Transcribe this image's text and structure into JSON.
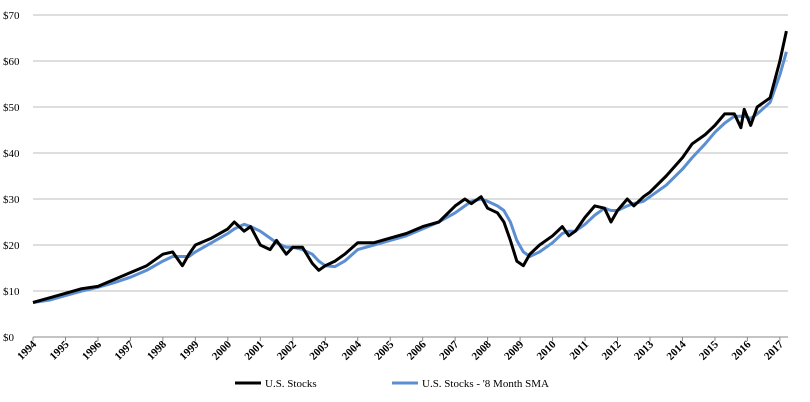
{
  "chart_data": {
    "type": "line",
    "x": [
      1994,
      1994.5,
      1995,
      1995.5,
      1996,
      1996.5,
      1997,
      1997.5,
      1998,
      1998.3,
      1998.6,
      1998.8,
      1999,
      1999.5,
      2000,
      2000.2,
      2000.5,
      2000.7,
      2001,
      2001.3,
      2001.5,
      2001.8,
      2002,
      2002.3,
      2002.6,
      2002.8,
      2003,
      2003.3,
      2003.6,
      2004,
      2004.5,
      2005,
      2005.5,
      2006,
      2006.5,
      2007,
      2007.3,
      2007.5,
      2007.8,
      2008,
      2008.3,
      2008.5,
      2008.7,
      2008.9,
      2009.1,
      2009.3,
      2009.6,
      2010,
      2010.3,
      2010.5,
      2010.7,
      2011,
      2011.3,
      2011.6,
      2011.8,
      2012,
      2012.3,
      2012.5,
      2012.8,
      2013,
      2013.5,
      2014,
      2014.3,
      2014.7,
      2015,
      2015.3,
      2015.6,
      2015.8,
      2015.9,
      2016.1,
      2016.3,
      2016.7,
      2017,
      2017.2
    ],
    "series": [
      {
        "name": "U.S. Stocks",
        "color": "#000000",
        "width": 3,
        "values": [
          7.5,
          8.5,
          9.5,
          10.5,
          11,
          12.5,
          14,
          15.5,
          18,
          18.5,
          15.5,
          18,
          20,
          21.5,
          23.5,
          25,
          23,
          24,
          20,
          19,
          21,
          18,
          19.5,
          19.5,
          16,
          14.5,
          15.5,
          16.5,
          18,
          20.5,
          20.5,
          21.5,
          22.5,
          24,
          25,
          28.5,
          30,
          29,
          30.5,
          28,
          27,
          25,
          21,
          16.5,
          15.5,
          18,
          20,
          22,
          24,
          22,
          23,
          26,
          28.5,
          28,
          25,
          27.5,
          30,
          28.5,
          30.5,
          31.5,
          35,
          39,
          42,
          44,
          46,
          48.5,
          48.5,
          45.5,
          49.5,
          46,
          50,
          52,
          60,
          66.5
        ]
      },
      {
        "name": "U.S. Stocks - '8 Month SMA",
        "color": "#5b8fd1",
        "width": 3,
        "values": [
          7.5,
          8,
          9,
          10,
          10.8,
          11.8,
          13,
          14.5,
          16.5,
          17.5,
          17.5,
          17.5,
          18.5,
          20.5,
          22.5,
          23.5,
          24.5,
          24,
          23,
          21.5,
          20.5,
          19.5,
          19.5,
          19,
          18,
          16.5,
          15.5,
          15.3,
          16.5,
          19,
          20,
          21,
          22,
          23.5,
          25,
          27,
          28.5,
          29.5,
          30,
          29.5,
          28.5,
          27.5,
          25,
          21,
          18.5,
          17.5,
          18.5,
          20.5,
          22.5,
          23,
          23,
          24.5,
          26.5,
          28,
          27.5,
          27.5,
          28.5,
          29,
          29.5,
          30.5,
          33,
          36.5,
          39,
          42,
          44.5,
          46.5,
          48,
          48,
          48,
          47.5,
          48.5,
          51,
          57,
          62
        ]
      }
    ],
    "xlim": [
      1994,
      2017.25
    ],
    "xticks": [
      1994,
      1995,
      1996,
      1997,
      1998,
      1999,
      2000,
      2001,
      2002,
      2003,
      2004,
      2005,
      2006,
      2007,
      2008,
      2009,
      2010,
      2011,
      2012,
      2013,
      2014,
      2015,
      2016,
      2017
    ],
    "ylim": [
      0,
      70
    ],
    "yticks": [
      {
        "value": 0,
        "label": "$0"
      },
      {
        "value": 10,
        "label": "$10"
      },
      {
        "value": 20,
        "label": "$20"
      },
      {
        "value": 30,
        "label": "$30"
      },
      {
        "value": 40,
        "label": "$40"
      },
      {
        "value": 50,
        "label": "$50"
      },
      {
        "value": 60,
        "label": "$60"
      },
      {
        "value": 70,
        "label": "$70"
      }
    ],
    "grid": true,
    "legend": "bottom"
  }
}
